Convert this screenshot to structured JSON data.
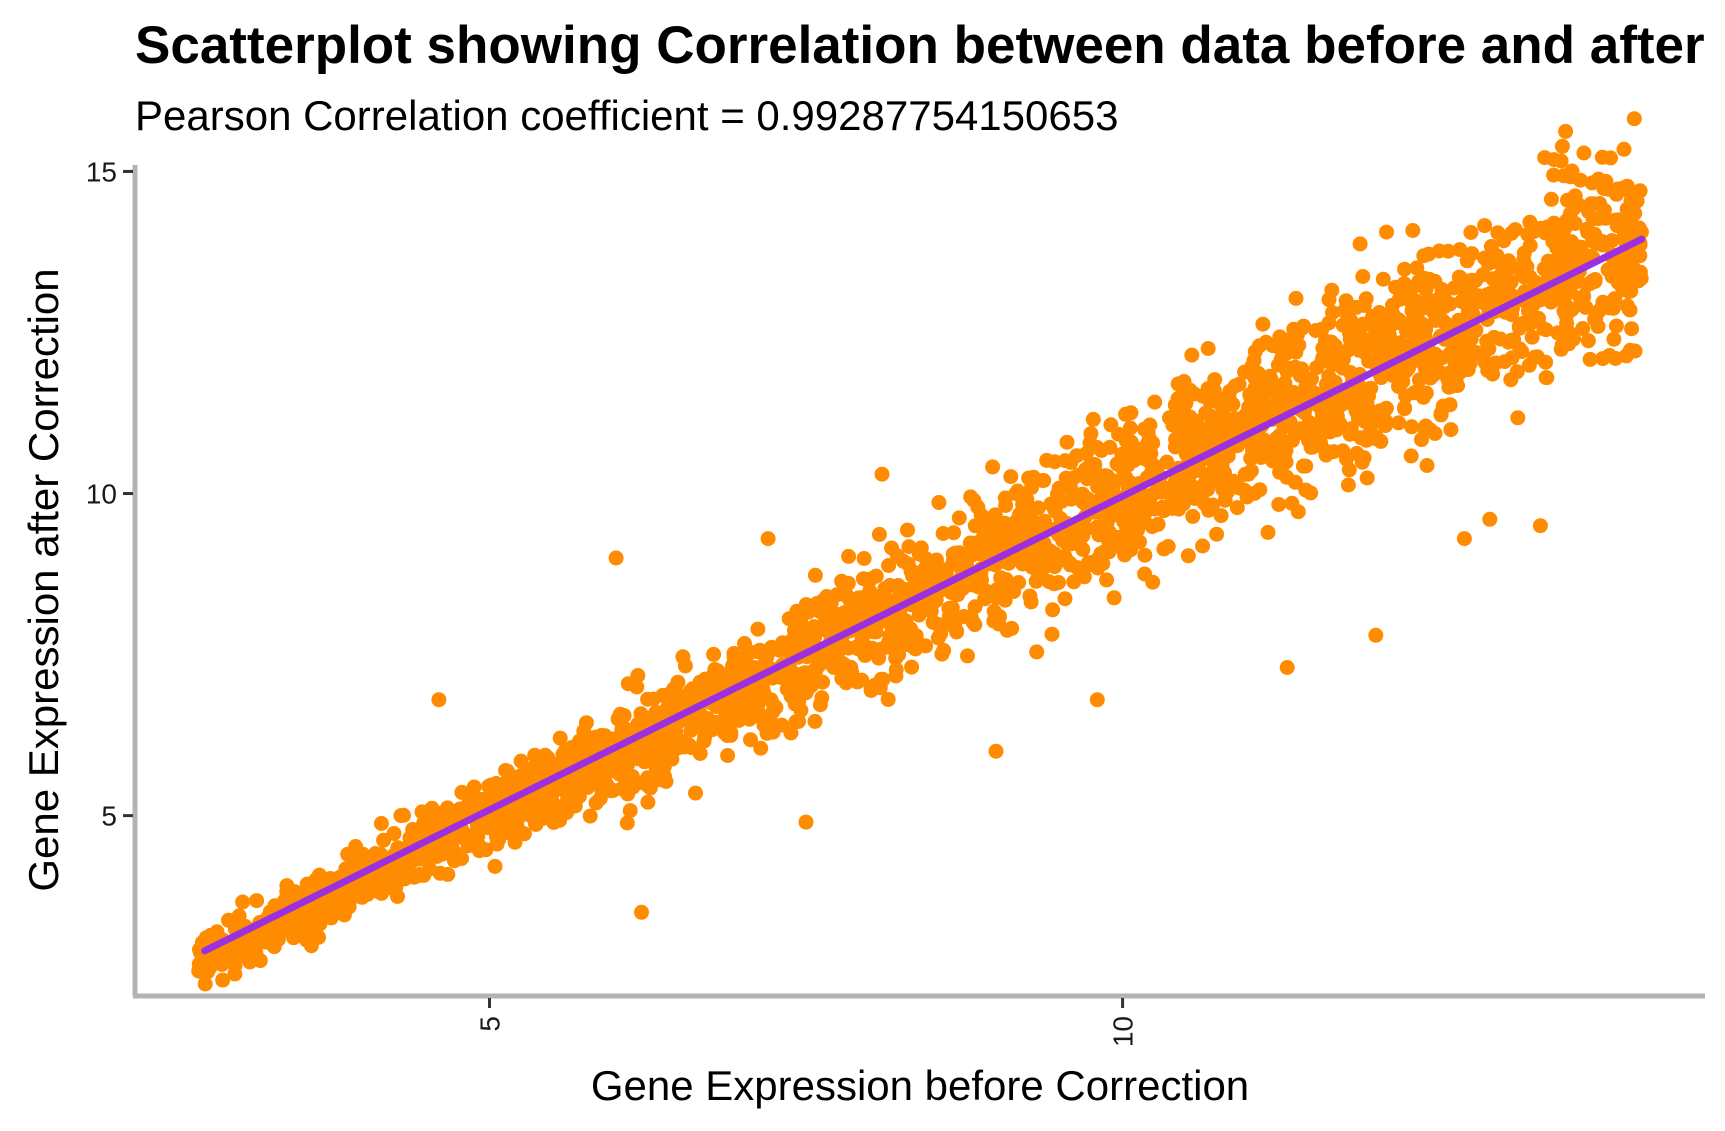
{
  "chart_data": {
    "type": "scatter",
    "title": "Scatterplot showing Correlation between data before and after",
    "subtitle": "Pearson Correlation coefficient = 0.99287754150653",
    "xlabel": "Gene Expression before Correction",
    "ylabel": "Gene Expression after Correction",
    "xlim": [
      2.2,
      14.6
    ],
    "ylim": [
      2.2,
      15.1
    ],
    "x_ticks": [
      "5",
      "10"
    ],
    "y_ticks": [
      "5",
      "10",
      "15"
    ],
    "grid": false,
    "legend": "none",
    "point_color": "#FF8C00",
    "line_color": "#9B30E0",
    "fit_line": {
      "x": [
        2.75,
        14.1
      ],
      "y": [
        2.9,
        13.95
      ]
    },
    "points_summary": {
      "n_points_approx": 20000,
      "x_range": [
        2.7,
        14.1
      ],
      "y_range": [
        2.6,
        14.5
      ],
      "relation": "y ≈ x"
    },
    "outliers": [
      {
        "x": 4.0,
        "y": 4.4
      },
      {
        "x": 4.3,
        "y": 5.0
      },
      {
        "x": 4.6,
        "y": 6.8
      },
      {
        "x": 6.0,
        "y": 9.0
      },
      {
        "x": 6.2,
        "y": 3.5
      },
      {
        "x": 7.2,
        "y": 9.3
      },
      {
        "x": 7.5,
        "y": 4.9
      },
      {
        "x": 8.1,
        "y": 10.3
      },
      {
        "x": 9.0,
        "y": 6.0
      },
      {
        "x": 9.8,
        "y": 6.8
      },
      {
        "x": 10.5,
        "y": 11.4
      },
      {
        "x": 11.3,
        "y": 7.3
      },
      {
        "x": 12.0,
        "y": 7.8
      },
      {
        "x": 12.7,
        "y": 9.3
      },
      {
        "x": 12.9,
        "y": 9.6
      },
      {
        "x": 13.3,
        "y": 9.5
      },
      {
        "x": 13.5,
        "y": 13.7
      },
      {
        "x": 13.7,
        "y": 14.5
      },
      {
        "x": 13.9,
        "y": 12.6
      }
    ]
  }
}
